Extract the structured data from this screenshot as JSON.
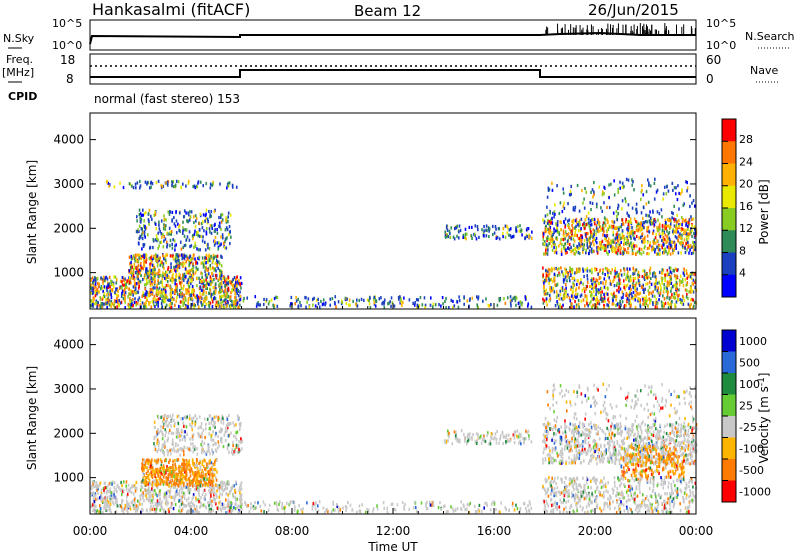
{
  "header": {
    "station": "Hankasalmi (fitACF)",
    "beam": "Beam 12",
    "date": "26/Jun/2015"
  },
  "labels": {
    "nsky": "N.Sky",
    "nsearch": "N.Search",
    "freq_top": "Freq.",
    "freq_unit": "[MHz]",
    "nave": "Nave",
    "cpid": "CPID",
    "mode": "normal (fast stereo) 153",
    "x_title": "Time UT"
  },
  "noise_panel": {
    "left_ticks": [
      "10^5",
      "10^0"
    ],
    "right_ticks": [
      "10^5",
      "10^0"
    ]
  },
  "freq_panel": {
    "left_ticks": [
      "18",
      "8"
    ],
    "right_ticks": [
      "60",
      "0"
    ]
  },
  "x_ticks": [
    "00:00",
    "04:00",
    "08:00",
    "12:00",
    "16:00",
    "20:00",
    "00:00"
  ],
  "chart_data": [
    {
      "type": "heatmap",
      "title": "",
      "xlabel": "",
      "ylabel": "Slant Range [km]",
      "xlim": [
        0,
        24
      ],
      "ylim": [
        180,
        4600
      ],
      "yticks": [
        1000,
        2000,
        3000,
        4000
      ],
      "colorbar": {
        "label": "Power [dB]",
        "ticks": [
          "28",
          "24",
          "20",
          "16",
          "12",
          "8",
          "4"
        ],
        "colors": [
          "#ff0000",
          "#ff7700",
          "#ffb000",
          "#e8e800",
          "#88cc22",
          "#2e8b57",
          "#1a3fbf",
          "#0000ff"
        ]
      },
      "regions": [
        {
          "t": [
            0.0,
            6.0
          ],
          "r": [
            180,
            1000
          ],
          "level": "mixed"
        },
        {
          "t": [
            1.5,
            4.5
          ],
          "r": [
            1500,
            2400
          ],
          "level": "weak"
        },
        {
          "t": [
            17.9,
            24.0
          ],
          "r": [
            180,
            2400
          ],
          "level": "mixed"
        },
        {
          "t": [
            13.5,
            17.5
          ],
          "r": [
            1700,
            2100
          ],
          "level": "weak"
        }
      ]
    },
    {
      "type": "heatmap",
      "title": "",
      "xlabel": "Time UT",
      "ylabel": "Slant Range [km]",
      "xlim": [
        0,
        24
      ],
      "ylim": [
        180,
        4600
      ],
      "yticks": [
        1000,
        2000,
        3000,
        4000
      ],
      "colorbar": {
        "label": "Velocity [m s^-1]",
        "ticks": [
          "1000",
          "500",
          "100",
          "25",
          "-25",
          "-100",
          "-500",
          "-1000"
        ],
        "colors": [
          "#0000d0",
          "#2a6ad8",
          "#1e8b3e",
          "#66cc33",
          "#c8c8c8",
          "#ffb400",
          "#ff7a00",
          "#ff0000"
        ]
      }
    }
  ]
}
